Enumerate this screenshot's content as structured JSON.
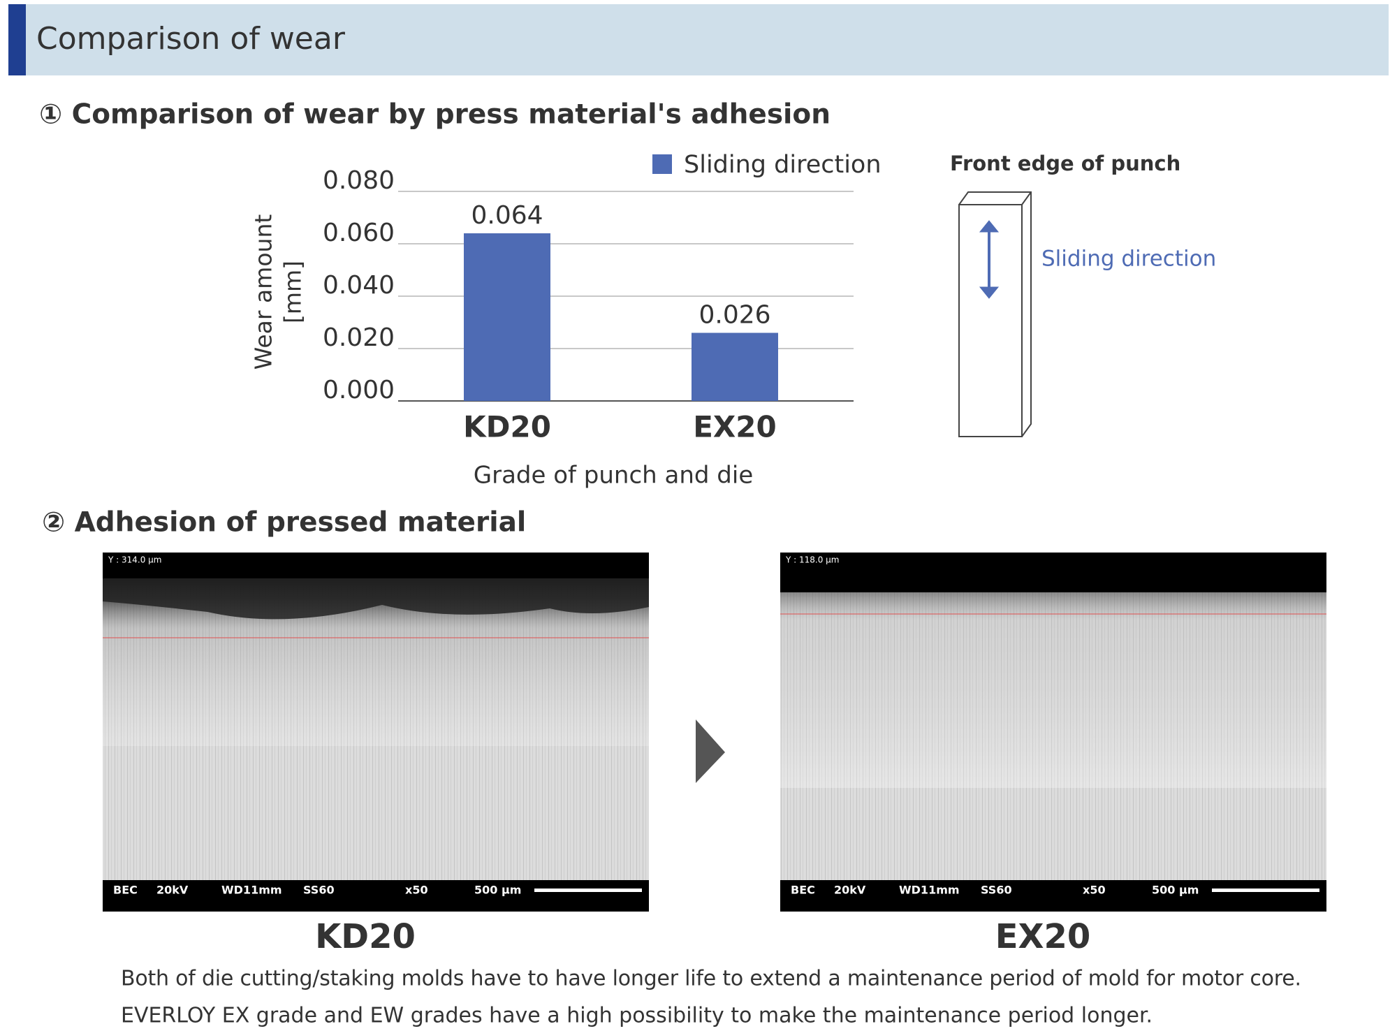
{
  "header": {
    "title": "Comparison of wear"
  },
  "section1": {
    "title": "① Comparison of wear by press material's adhesion"
  },
  "chart_data": {
    "type": "bar",
    "ylabel": "Wear amount",
    "yunit": "[mm]",
    "xlabel": "Grade of punch and die",
    "categories": [
      "KD20",
      "EX20"
    ],
    "series": [
      {
        "name": "Sliding direction",
        "color": "#4e6bb4",
        "values": [
          0.064,
          0.026
        ]
      }
    ],
    "ylim": [
      0,
      0.08
    ],
    "yticks": [
      {
        "value": 0,
        "label": "0.000"
      },
      {
        "value": 0.02,
        "label": "0.020"
      },
      {
        "value": 0.04,
        "label": "0.040"
      },
      {
        "value": 0.06,
        "label": "0.060"
      },
      {
        "value": 0.08,
        "label": "0.080"
      }
    ],
    "grid": true,
    "legend": "top-right"
  },
  "diagram": {
    "title": "Front edge of punch",
    "arrow_label": "Sliding direction"
  },
  "section2": {
    "title": "② Adhesion of pressed material"
  },
  "images": [
    {
      "label": "KD20",
      "measure": "Y : 314.0 µm",
      "info": [
        "BEC",
        "20kV",
        "WD11mm",
        "SS60",
        "x50",
        "500 µm"
      ]
    },
    {
      "label": "EX20",
      "measure": "Y : 118.0 µm",
      "info": [
        "BEC",
        "20kV",
        "WD11mm",
        "SS60",
        "x50",
        "500 µm"
      ]
    }
  ],
  "paragraph": [
    "Both of die cutting/staking molds have to have longer life to extend a maintenance period of mold for motor core.",
    "EVERLOY EX grade and EW grades have a high possibility to make the maintenance period longer."
  ]
}
